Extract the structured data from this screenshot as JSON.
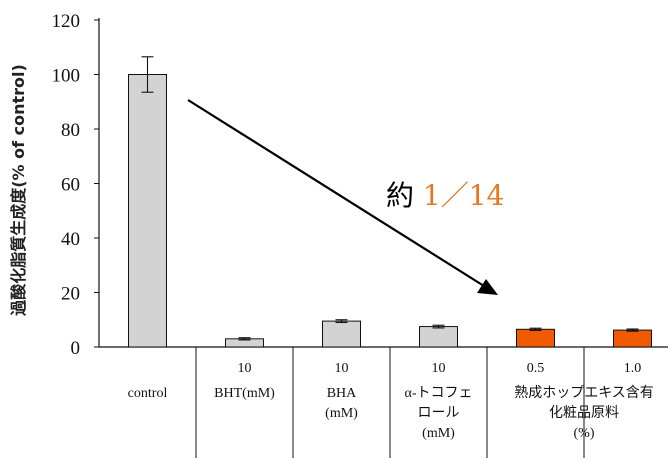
{
  "chart_data": {
    "type": "bar",
    "ylabel": "過酸化脂質生成度(% of control)",
    "ylim": [
      0,
      120
    ],
    "yticks": [
      "0",
      "20",
      "40",
      "60",
      "80",
      "100",
      "120"
    ],
    "categories": [
      {
        "id": "control",
        "value": 100,
        "err": 6.5,
        "color": "#d3d3d3",
        "lines": [
          "",
          "control"
        ]
      },
      {
        "id": "bht",
        "value": 3,
        "err": 0.4,
        "color": "#d3d3d3",
        "lines": [
          "10",
          "BHT(mM)"
        ]
      },
      {
        "id": "bha",
        "value": 9.5,
        "err": 0.5,
        "color": "#d3d3d3",
        "lines": [
          "10",
          "BHA",
          "(mM)"
        ]
      },
      {
        "id": "tocopherol",
        "value": 7.5,
        "err": 0.5,
        "color": "#d3d3d3",
        "lines": [
          "10",
          "α-トコフェ",
          "ロール",
          "(mM)"
        ]
      },
      {
        "id": "hop-0-5",
        "value": 6.5,
        "err": 0.4,
        "color": "#f05a00",
        "lines": [
          "0.5",
          "熟成ホップエキス含有",
          "化粧品原料",
          "(%)"
        ]
      },
      {
        "id": "hop-1-0",
        "value": 6.2,
        "err": 0.4,
        "color": "#f05a00",
        "lines": [
          "1.0",
          "",
          "",
          ""
        ]
      }
    ],
    "annotation": {
      "prefix": "約 ",
      "ratio": "1／14",
      "ratio_color": "#e87722"
    }
  }
}
